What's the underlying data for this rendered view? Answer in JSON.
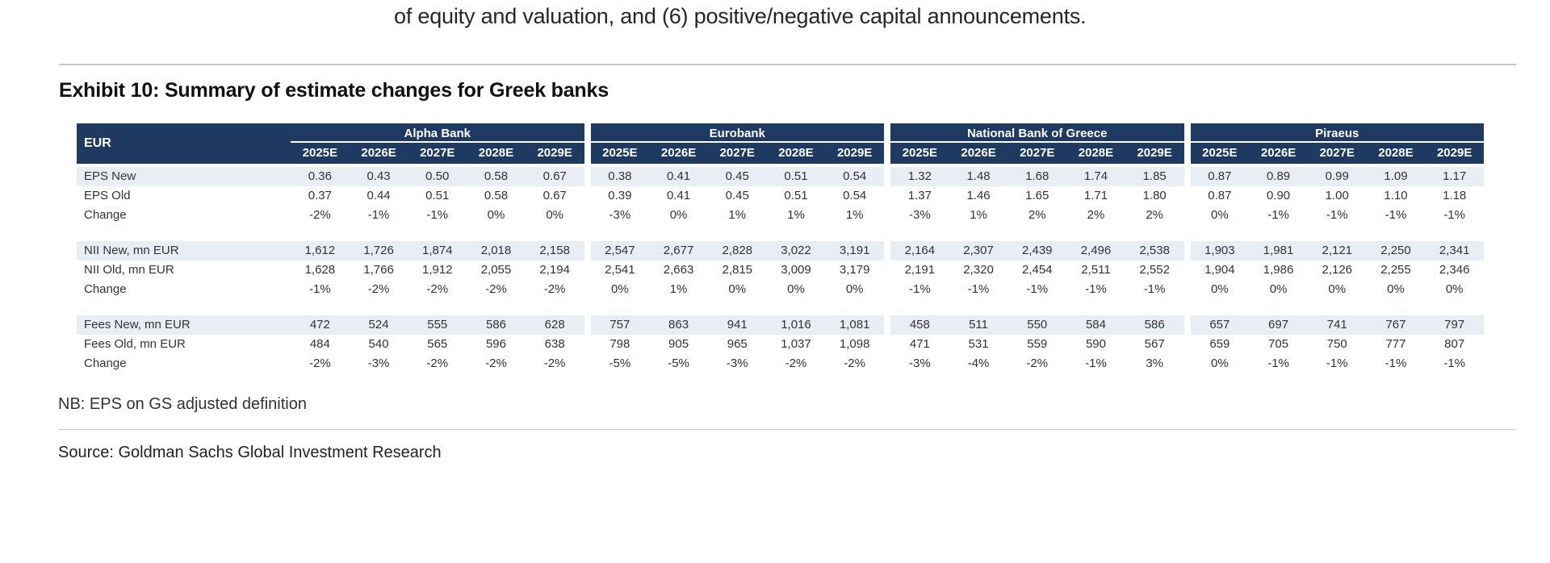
{
  "page": {
    "top_text": "of equity and valuation, and (6) positive/negative capital announcements.",
    "exhibit_title": "Exhibit 10: Summary of estimate changes for Greek banks",
    "note": "NB: EPS on GS adjusted definition",
    "source": "Source: Goldman Sachs Global Investment Research"
  },
  "colors": {
    "header_bg": "#1F3A60",
    "shaded_row": "#E9EDF4",
    "body_text": "#333333"
  },
  "table": {
    "corner_label": "EUR",
    "groups": [
      {
        "name": "Alpha Bank",
        "years": [
          "2025E",
          "2026E",
          "2027E",
          "2028E",
          "2029E"
        ]
      },
      {
        "name": "Eurobank",
        "years": [
          "2025E",
          "2026E",
          "2027E",
          "2028E",
          "2029E"
        ]
      },
      {
        "name": "National Bank of Greece",
        "years": [
          "2025E",
          "2026E",
          "2027E",
          "2028E",
          "2029E"
        ]
      },
      {
        "name": "Piraeus",
        "years": [
          "2025E",
          "2026E",
          "2027E",
          "2028E",
          "2029E"
        ]
      }
    ],
    "rows": [
      {
        "label": "EPS New",
        "shaded": true,
        "groups": [
          [
            "0.36",
            "0.43",
            "0.50",
            "0.58",
            "0.67"
          ],
          [
            "0.38",
            "0.41",
            "0.45",
            "0.51",
            "0.54"
          ],
          [
            "1.32",
            "1.48",
            "1.68",
            "1.74",
            "1.85"
          ],
          [
            "0.87",
            "0.89",
            "0.99",
            "1.09",
            "1.17"
          ]
        ]
      },
      {
        "label": "EPS Old",
        "shaded": false,
        "groups": [
          [
            "0.37",
            "0.44",
            "0.51",
            "0.58",
            "0.67"
          ],
          [
            "0.39",
            "0.41",
            "0.45",
            "0.51",
            "0.54"
          ],
          [
            "1.37",
            "1.46",
            "1.65",
            "1.71",
            "1.80"
          ],
          [
            "0.87",
            "0.90",
            "1.00",
            "1.10",
            "1.18"
          ]
        ]
      },
      {
        "label": "Change",
        "shaded": false,
        "groups": [
          [
            "-2%",
            "-1%",
            "-1%",
            "0%",
            "0%"
          ],
          [
            "-3%",
            "0%",
            "1%",
            "1%",
            "1%"
          ],
          [
            "-3%",
            "1%",
            "2%",
            "2%",
            "2%"
          ],
          [
            "0%",
            "-1%",
            "-1%",
            "-1%",
            "-1%"
          ]
        ]
      },
      {
        "spacer": true
      },
      {
        "label": "NII New, mn EUR",
        "shaded": true,
        "groups": [
          [
            "1,612",
            "1,726",
            "1,874",
            "2,018",
            "2,158"
          ],
          [
            "2,547",
            "2,677",
            "2,828",
            "3,022",
            "3,191"
          ],
          [
            "2,164",
            "2,307",
            "2,439",
            "2,496",
            "2,538"
          ],
          [
            "1,903",
            "1,981",
            "2,121",
            "2,250",
            "2,341"
          ]
        ]
      },
      {
        "label": "NII Old, mn EUR",
        "shaded": false,
        "groups": [
          [
            "1,628",
            "1,766",
            "1,912",
            "2,055",
            "2,194"
          ],
          [
            "2,541",
            "2,663",
            "2,815",
            "3,009",
            "3,179"
          ],
          [
            "2,191",
            "2,320",
            "2,454",
            "2,511",
            "2,552"
          ],
          [
            "1,904",
            "1,986",
            "2,126",
            "2,255",
            "2,346"
          ]
        ]
      },
      {
        "label": "Change",
        "shaded": false,
        "groups": [
          [
            "-1%",
            "-2%",
            "-2%",
            "-2%",
            "-2%"
          ],
          [
            "0%",
            "1%",
            "0%",
            "0%",
            "0%"
          ],
          [
            "-1%",
            "-1%",
            "-1%",
            "-1%",
            "-1%"
          ],
          [
            "0%",
            "0%",
            "0%",
            "0%",
            "0%"
          ]
        ]
      },
      {
        "spacer": true
      },
      {
        "label": "Fees New, mn EUR",
        "shaded": true,
        "groups": [
          [
            "472",
            "524",
            "555",
            "586",
            "628"
          ],
          [
            "757",
            "863",
            "941",
            "1,016",
            "1,081"
          ],
          [
            "458",
            "511",
            "550",
            "584",
            "586"
          ],
          [
            "657",
            "697",
            "741",
            "767",
            "797"
          ]
        ]
      },
      {
        "label": "Fees Old, mn EUR",
        "shaded": false,
        "groups": [
          [
            "484",
            "540",
            "565",
            "596",
            "638"
          ],
          [
            "798",
            "905",
            "965",
            "1,037",
            "1,098"
          ],
          [
            "471",
            "531",
            "559",
            "590",
            "567"
          ],
          [
            "659",
            "705",
            "750",
            "777",
            "807"
          ]
        ]
      },
      {
        "label": "Change",
        "shaded": false,
        "groups": [
          [
            "-2%",
            "-3%",
            "-2%",
            "-2%",
            "-2%"
          ],
          [
            "-5%",
            "-5%",
            "-3%",
            "-2%",
            "-2%"
          ],
          [
            "-3%",
            "-4%",
            "-2%",
            "-1%",
            "3%"
          ],
          [
            "0%",
            "-1%",
            "-1%",
            "-1%",
            "-1%"
          ]
        ]
      }
    ]
  }
}
